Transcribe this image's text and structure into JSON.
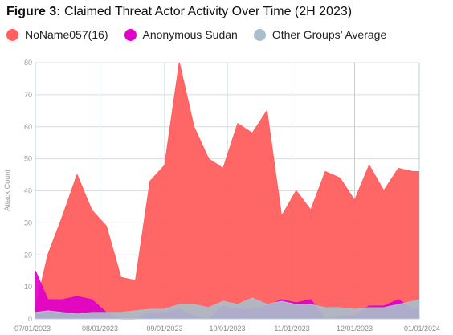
{
  "figure": {
    "label": "Figure 3:",
    "title": " Claimed Threat Actor Activity Over Time (2H 2023)"
  },
  "chart_data": {
    "type": "area",
    "title": "Figure 3: Claimed Threat Actor Activity Over Time (2H 2023)",
    "xlabel": "",
    "ylabel": "Attack Count",
    "ylim": [
      0,
      80
    ],
    "yticks": [
      0,
      10,
      20,
      30,
      40,
      50,
      60,
      70,
      80
    ],
    "xlim": [
      "2023-07-01",
      "2024-01-01"
    ],
    "xticks": [
      {
        "date": "2023-07-01",
        "label": "07/01/2023"
      },
      {
        "date": "2023-08-01",
        "label": "08/01/2023"
      },
      {
        "date": "2023-09-01",
        "label": "09/01/2023"
      },
      {
        "date": "2023-10-01",
        "label": "10/01/2023"
      },
      {
        "date": "2023-11-01",
        "label": "11/01/2023"
      },
      {
        "date": "2023-12-01",
        "label": "12/01/2023"
      },
      {
        "date": "2024-01-01",
        "label": "01/01/2024"
      }
    ],
    "grid": true,
    "legend_position": "top",
    "x": [
      "2023-07-01",
      "2023-07-07",
      "2023-07-14",
      "2023-07-21",
      "2023-07-28",
      "2023-08-04",
      "2023-08-11",
      "2023-08-18",
      "2023-08-25",
      "2023-09-01",
      "2023-09-08",
      "2023-09-15",
      "2023-09-22",
      "2023-09-29",
      "2023-10-06",
      "2023-10-13",
      "2023-10-20",
      "2023-10-27",
      "2023-11-03",
      "2023-11-10",
      "2023-11-17",
      "2023-11-24",
      "2023-12-01",
      "2023-12-08",
      "2023-12-15",
      "2023-12-22",
      "2023-12-29",
      "2024-01-01"
    ],
    "series": [
      {
        "name": "NoName057(16)",
        "color": "#ff5f5f",
        "values": [
          3,
          20,
          32,
          45,
          34,
          29,
          13,
          12,
          43,
          48,
          80,
          60,
          50,
          47,
          61,
          58,
          65,
          32,
          40,
          34,
          46,
          44,
          37,
          48,
          40,
          47,
          46,
          46
        ]
      },
      {
        "name": "Anonymous Sudan",
        "color": "#e000c8",
        "values": [
          15,
          6,
          6,
          7,
          6,
          2,
          0,
          0,
          2,
          2,
          3,
          1,
          0,
          4,
          3,
          3,
          4,
          6,
          5,
          6,
          0,
          1,
          1,
          4,
          4,
          6,
          3,
          3
        ]
      },
      {
        "name": "Other Groups’ Average",
        "color": "#aabfcb",
        "values": [
          2,
          2.5,
          2,
          1.5,
          2,
          2,
          2,
          2.5,
          3,
          3,
          4.5,
          4.5,
          3.5,
          5.5,
          4.5,
          6.5,
          4.5,
          5.5,
          4.5,
          4.5,
          3.5,
          3.5,
          3,
          3.5,
          3.5,
          4.5,
          5.5,
          6
        ]
      }
    ]
  }
}
